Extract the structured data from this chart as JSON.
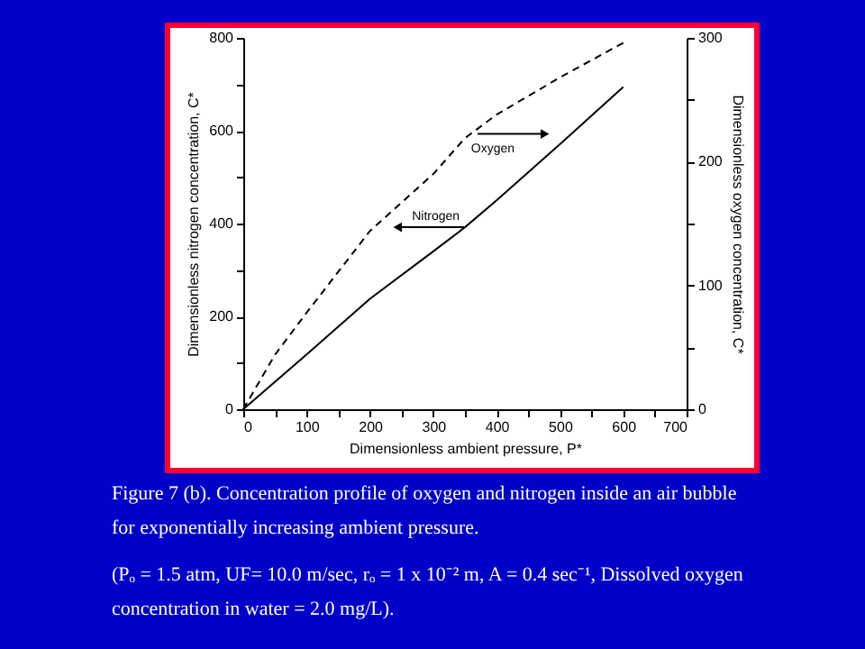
{
  "chart_data": {
    "type": "line",
    "xlabel": "Dimensionless ambient pressure, P*",
    "ylabel": "Dimensionless nitrogen concentration, C*",
    "y2label": "Dimensionless oxygen concentration, C*",
    "xlim": [
      0,
      700
    ],
    "ylim": [
      0,
      800
    ],
    "y2lim": [
      0,
      300
    ],
    "xticks": [
      0,
      {
        "value": 50,
        "label": null
      },
      100,
      {
        "value": 150,
        "label": null
      },
      200,
      {
        "value": 250,
        "label": null
      },
      300,
      {
        "value": 350,
        "label": null
      },
      400,
      {
        "value": 450,
        "label": null
      },
      500,
      {
        "value": 550,
        "label": null
      },
      600,
      {
        "value": 650,
        "label": null
      },
      700
    ],
    "yticks": [
      0,
      {
        "value": 100,
        "label": null
      },
      200,
      {
        "value": 300,
        "label": null
      },
      400,
      {
        "value": 500,
        "label": null
      },
      600,
      {
        "value": 700,
        "label": null
      },
      800
    ],
    "y2ticks": [
      0,
      {
        "value": 50,
        "label": null
      },
      100,
      {
        "value": 150,
        "label": null
      },
      200,
      {
        "value": 250,
        "label": null
      },
      300
    ],
    "series": [
      {
        "name": "Oxygen",
        "color": "#000000",
        "axis": "y2",
        "line_style": "dashed",
        "x": [
          0,
          50,
          100,
          200,
          300,
          350,
          400,
          500,
          600
        ],
        "values": [
          0,
          44,
          78,
          144,
          190,
          219,
          238,
          268,
          296
        ]
      },
      {
        "name": "Nitrogen",
        "color": "#000000",
        "line_style": "solid",
        "x": [
          0,
          100,
          200,
          300,
          350,
          400,
          500,
          600
        ],
        "values": [
          0,
          118,
          238,
          340,
          392,
          450,
          571,
          694
        ]
      }
    ],
    "grid": false,
    "legend": false,
    "marker": "none",
    "annotations": [
      "Figure 7 (b). Concentration profile of oxygen and nitrogen inside an air bubble for exponentially increasing ambient pressure.",
      "(Pₒ = 1.5 atm, UF= 10.0 m/sec, rₒ = 1 x 10⁻² m, A = 0.4 sec⁻¹, Dissolved oxygen concentration in water = 2.0 mg/L)."
    ]
  }
}
